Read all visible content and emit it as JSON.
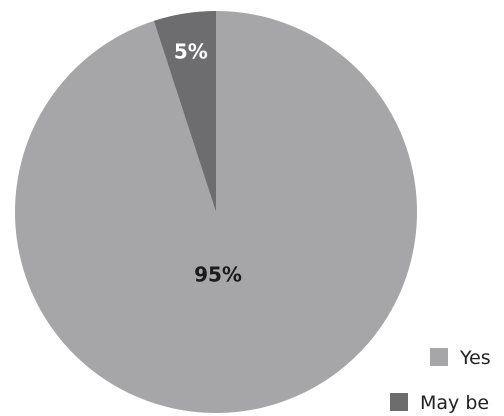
{
  "chart_data": {
    "type": "pie",
    "title": "",
    "slices": [
      {
        "label": "Yes",
        "value": 95,
        "display": "95%",
        "color": "#a6a6a8",
        "label_color": "#1a1a1a"
      },
      {
        "label": "May be",
        "value": 5,
        "display": "5%",
        "color": "#6d6d70",
        "label_color": "#ffffff"
      }
    ],
    "legend": {
      "position": "bottom-right",
      "entries": [
        "Yes",
        "May be"
      ]
    }
  }
}
